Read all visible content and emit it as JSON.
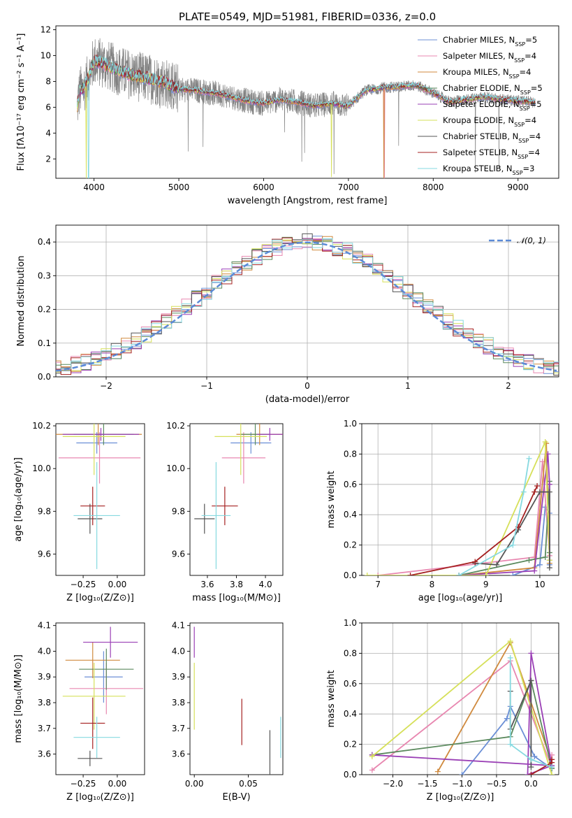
{
  "figure_title": "PLATE=0549, MJD=51981, FIBERID=0336, z=0.0",
  "colors": {
    "Chabrier MILES": "#6b8fd6",
    "Salpeter MILES": "#e887b0",
    "Kroupa MILES": "#d08a3e",
    "Chabrier ELODIE": "#5b8a5e",
    "Salpeter ELODIE": "#9a3fb5",
    "Kroupa ELODIE": "#d6e05a",
    "Chabrier STELIB": "#555555",
    "Salpeter STELIB": "#a52020",
    "Kroupa STELIB": "#86d9e0"
  },
  "chart_data": [
    {
      "type": "line",
      "id": "spectrum",
      "title": "PLATE=0549, MJD=51981, FIBERID=0336, z=0.0",
      "xlabel": "wavelength [Angstrom, rest frame]",
      "ylabel": "Flux [fλ10⁻¹⁷ erg cm⁻² s⁻¹ A⁻¹]",
      "xlim": [
        3550,
        9480
      ],
      "ylim": [
        0.5,
        12.3
      ],
      "xticks": [
        4000,
        5000,
        6000,
        7000,
        8000,
        9000
      ],
      "yticks": [
        2,
        4,
        6,
        8,
        10,
        12
      ],
      "legend_position": "top-right",
      "data_color": "#808080",
      "continuum_nodes": {
        "x": [
          3800,
          3830,
          3880,
          3920,
          3960,
          4000,
          4100,
          4300,
          4500,
          4800,
          5000,
          5200,
          5500,
          5800,
          6000,
          6200,
          6400,
          6600,
          6800,
          7000,
          7200,
          7400,
          7600,
          7800,
          8000,
          8200,
          8400,
          8600,
          8800,
          9000,
          9200
        ],
        "y": [
          6.0,
          7.2,
          7.5,
          8.0,
          8.8,
          9.6,
          9.4,
          8.8,
          8.4,
          8.0,
          7.4,
          7.3,
          7.0,
          6.5,
          6.3,
          6.6,
          6.4,
          6.1,
          6.3,
          6.1,
          7.3,
          7.5,
          7.6,
          7.7,
          7.1,
          6.4,
          6.6,
          6.8,
          6.6,
          6.5,
          6.4
        ]
      },
      "dropouts": [
        {
          "series": "Kroupa ELODIE",
          "x": 6800,
          "depth": 0.6
        },
        {
          "series": "Kroupa MILES",
          "x": 7420,
          "depth": 0.2
        },
        {
          "series": "Salpeter MILES",
          "x": 7425,
          "depth": 0.2
        },
        {
          "series": "Kroupa ELODIE",
          "x": 3910,
          "depth": 0.5
        },
        {
          "series": "Kroupa STELIB",
          "x": 3935,
          "depth": 0.3
        }
      ],
      "series": [
        {
          "name": "Chabrier MILES",
          "legend": "Chabrier MILES, N",
          "sub": "SSP",
          "suffix": "=5"
        },
        {
          "name": "Salpeter MILES",
          "legend": "Salpeter MILES, N",
          "sub": "SSP",
          "suffix": "=4"
        },
        {
          "name": "Kroupa MILES",
          "legend": "Kroupa MILES, N",
          "sub": "SSP",
          "suffix": "=4"
        },
        {
          "name": "Chabrier ELODIE",
          "legend": "Chabrier ELODIE, N",
          "sub": "SSP",
          "suffix": "=5"
        },
        {
          "name": "Salpeter ELODIE",
          "legend": "Salpeter ELODIE, N",
          "sub": "SSP",
          "suffix": "=5"
        },
        {
          "name": "Kroupa ELODIE",
          "legend": "Kroupa ELODIE, N",
          "sub": "SSP",
          "suffix": "=4"
        },
        {
          "name": "Chabrier STELIB",
          "legend": "Chabrier STELIB, N",
          "sub": "SSP",
          "suffix": "=4"
        },
        {
          "name": "Salpeter STELIB",
          "legend": "Salpeter STELIB, N",
          "sub": "SSP",
          "suffix": "=4"
        },
        {
          "name": "Kroupa STELIB",
          "legend": "Kroupa STELIB, N",
          "sub": "SSP",
          "suffix": "=3"
        }
      ]
    },
    {
      "type": "histogram",
      "id": "residuals",
      "xlabel": "(data-model)/error",
      "ylabel": "Normed distribution",
      "xlim": [
        -2.5,
        2.5
      ],
      "ylim": [
        0,
        0.45
      ],
      "xticks": [
        -2,
        -1,
        0,
        1,
        2
      ],
      "yticks": [
        0.0,
        0.1,
        0.2,
        0.3,
        0.4
      ],
      "grid": true,
      "bin_width": 0.1,
      "reference": {
        "label": "𝒩(0, 1)",
        "mean": 0,
        "sigma": 1,
        "color": "#5b8ad6",
        "style": "dashed"
      },
      "legend_position": "top-right"
    },
    {
      "type": "errorbar",
      "id": "age_vs_Z",
      "xlabel": "Z [log₁₀(Z/Z⊙)]",
      "ylabel": "age  [log₁₀(age/yr)]",
      "xlim": [
        -0.45,
        0.2
      ],
      "ylim": [
        9.5,
        10.21
      ],
      "xticks": [
        -0.25,
        0.0
      ],
      "yticks": [
        9.6,
        9.8,
        10.0,
        10.2
      ],
      "points": [
        {
          "series": "Chabrier MILES",
          "x": -0.15,
          "xerr": 0.15,
          "y": 10.12,
          "yerr": 0.05
        },
        {
          "series": "Salpeter MILES",
          "x": -0.13,
          "xerr": 0.3,
          "y": 10.05,
          "yerr": 0.12
        },
        {
          "series": "Kroupa MILES",
          "x": -0.14,
          "xerr": 0.32,
          "y": 10.16,
          "yerr": 0.05
        },
        {
          "series": "Chabrier ELODIE",
          "x": -0.1,
          "xerr": 0.22,
          "y": 10.16,
          "yerr": 0.05
        },
        {
          "series": "Salpeter ELODIE",
          "x": -0.12,
          "xerr": 0.28,
          "y": 10.16,
          "yerr": 0.03
        },
        {
          "series": "Kroupa ELODIE",
          "x": -0.17,
          "xerr": 0.23,
          "y": 10.15,
          "yerr": 0.18
        },
        {
          "series": "Chabrier STELIB",
          "x": -0.2,
          "xerr": 0.09,
          "y": 9.765,
          "yerr": 0.07
        },
        {
          "series": "Salpeter STELIB",
          "x": -0.18,
          "xerr": 0.09,
          "y": 9.825,
          "yerr": 0.09
        },
        {
          "series": "Kroupa STELIB",
          "x": -0.15,
          "xerr": 0.17,
          "y": 9.78,
          "yerr": 0.25
        }
      ]
    },
    {
      "type": "errorbar",
      "id": "age_vs_mass",
      "xlabel": "mass [log₁₀(M/M⊙)]",
      "ylabel": "",
      "xlim": [
        3.48,
        4.12
      ],
      "ylim": [
        9.5,
        10.21
      ],
      "xticks": [
        3.6,
        3.8,
        4.0
      ],
      "yticks": [
        9.6,
        9.8,
        10.0,
        10.2
      ],
      "points": [
        {
          "series": "Chabrier MILES",
          "x": 3.9,
          "xerr": 0.14,
          "y": 10.12,
          "yerr": 0.05
        },
        {
          "series": "Salpeter MILES",
          "x": 3.85,
          "xerr": 0.15,
          "y": 10.05,
          "yerr": 0.12
        },
        {
          "series": "Kroupa MILES",
          "x": 3.96,
          "xerr": 0.16,
          "y": 10.16,
          "yerr": 0.05
        },
        {
          "series": "Chabrier ELODIE",
          "x": 3.93,
          "xerr": 0.1,
          "y": 10.16,
          "yerr": 0.05
        },
        {
          "series": "Salpeter ELODIE",
          "x": 4.03,
          "xerr": 0.09,
          "y": 10.16,
          "yerr": 0.03
        },
        {
          "series": "Kroupa ELODIE",
          "x": 3.83,
          "xerr": 0.18,
          "y": 10.15,
          "yerr": 0.18
        },
        {
          "series": "Chabrier STELIB",
          "x": 3.58,
          "xerr": 0.07,
          "y": 9.765,
          "yerr": 0.07
        },
        {
          "series": "Salpeter STELIB",
          "x": 3.72,
          "xerr": 0.09,
          "y": 9.825,
          "yerr": 0.09
        },
        {
          "series": "Kroupa STELIB",
          "x": 3.66,
          "xerr": 0.1,
          "y": 9.78,
          "yerr": 0.25
        }
      ]
    },
    {
      "type": "line",
      "id": "weight_vs_age",
      "xlabel": "age  [log₁₀(age/yr)]",
      "ylabel": "mass weight",
      "xlim": [
        6.7,
        10.35
      ],
      "ylim": [
        0,
        1
      ],
      "xticks": [
        7,
        8,
        9,
        10
      ],
      "yticks": [
        0.0,
        0.2,
        0.4,
        0.6,
        0.8,
        1.0
      ],
      "grid": true,
      "series": [
        {
          "name": "Chabrier MILES",
          "x": [
            9.5,
            10.0,
            10.1,
            10.18,
            10.18
          ],
          "y": [
            0.0,
            0.07,
            0.45,
            0.41,
            0.07
          ]
        },
        {
          "name": "Salpeter MILES",
          "x": [
            7.0,
            9.9,
            10.05,
            10.18
          ],
          "y": [
            0.0,
            0.12,
            0.75,
            0.13
          ]
        },
        {
          "name": "Kroupa MILES",
          "x": [
            8.5,
            9.9,
            10.12,
            10.18
          ],
          "y": [
            0.0,
            0.05,
            0.87,
            0.08
          ]
        },
        {
          "name": "Chabrier ELODIE",
          "x": [
            8.5,
            9.8,
            10.1,
            10.18,
            10.18
          ],
          "y": [
            0.0,
            0.1,
            0.12,
            0.62,
            0.15
          ]
        },
        {
          "name": "Salpeter ELODIE",
          "x": [
            8.5,
            9.9,
            10.15,
            10.18,
            10.18
          ],
          "y": [
            0.0,
            0.03,
            0.8,
            0.6,
            0.1
          ]
        },
        {
          "name": "Kroupa ELODIE",
          "x": [
            6.8,
            9.0,
            10.1,
            10.18
          ],
          "y": [
            0.0,
            0.0,
            0.88,
            0.1
          ]
        },
        {
          "name": "Chabrier STELIB",
          "x": [
            8.8,
            9.2,
            9.6,
            10.0,
            10.18,
            10.18
          ],
          "y": [
            0.08,
            0.07,
            0.3,
            0.55,
            0.55,
            0.05
          ]
        },
        {
          "name": "Salpeter STELIB",
          "x": [
            7.6,
            8.8,
            9.6,
            9.9,
            9.95
          ],
          "y": [
            0.0,
            0.09,
            0.32,
            0.55,
            0.59
          ]
        },
        {
          "name": "Kroupa STELIB",
          "x": [
            8.5,
            9.5,
            9.7,
            9.8
          ],
          "y": [
            0.0,
            0.2,
            0.55,
            0.77
          ]
        }
      ]
    },
    {
      "type": "errorbar",
      "id": "mass_vs_Z",
      "xlabel": "Z [log₁₀(Z/Z⊙)]",
      "ylabel": "mass [log₁₀(M/M⊙)]",
      "xlim": [
        -0.45,
        0.2
      ],
      "ylim": [
        3.52,
        4.11
      ],
      "xticks": [
        -0.25,
        0.0
      ],
      "yticks": [
        3.6,
        3.7,
        3.8,
        3.9,
        4.0,
        4.1
      ],
      "points": [
        {
          "series": "Chabrier MILES",
          "x": -0.1,
          "xerr": 0.14,
          "y": 3.9,
          "yerr": 0.1
        },
        {
          "series": "Salpeter MILES",
          "x": -0.08,
          "xerr": 0.27,
          "y": 3.855,
          "yerr": 0.1
        },
        {
          "series": "Kroupa MILES",
          "x": -0.18,
          "xerr": 0.2,
          "y": 3.965,
          "yerr": 0.07
        },
        {
          "series": "Chabrier ELODIE",
          "x": -0.08,
          "xerr": 0.2,
          "y": 3.93,
          "yerr": 0.08
        },
        {
          "series": "Salpeter ELODIE",
          "x": -0.05,
          "xerr": 0.2,
          "y": 4.035,
          "yerr": 0.06
        },
        {
          "series": "Kroupa ELODIE",
          "x": -0.17,
          "xerr": 0.23,
          "y": 3.825,
          "yerr": 0.13
        },
        {
          "series": "Chabrier STELIB",
          "x": -0.2,
          "xerr": 0.09,
          "y": 3.583,
          "yerr": 0.03
        },
        {
          "series": "Salpeter STELIB",
          "x": -0.18,
          "xerr": 0.09,
          "y": 3.72,
          "yerr": 0.1
        },
        {
          "series": "Kroupa STELIB",
          "x": -0.15,
          "xerr": 0.17,
          "y": 3.665,
          "yerr": 0.08
        }
      ]
    },
    {
      "type": "errorbar",
      "id": "mass_vs_ebv",
      "xlabel": "E(B-V)",
      "ylabel": "",
      "xlim": [
        -0.004,
        0.082
      ],
      "ylim": [
        3.52,
        4.11
      ],
      "xticks": [
        0.0,
        0.05
      ],
      "yticks": [
        3.6,
        3.7,
        3.8,
        3.9,
        4.0,
        4.1
      ],
      "points": [
        {
          "series": "Salpeter ELODIE",
          "x": 0.0,
          "y": 4.035,
          "yerr": 0.06
        },
        {
          "series": "Kroupa ELODIE",
          "x": 0.0,
          "y": 3.825,
          "yerr": 0.13
        },
        {
          "series": "Salpeter STELIB",
          "x": 0.044,
          "y": 3.725,
          "yerr": 0.09
        },
        {
          "series": "Chabrier STELIB",
          "x": 0.07,
          "y": 3.583,
          "yerr": 0.11
        },
        {
          "series": "Kroupa STELIB",
          "x": 0.08,
          "y": 3.665,
          "yerr": 0.08
        }
      ]
    },
    {
      "type": "line",
      "id": "weight_vs_Z",
      "xlabel": "Z [log₁₀(Z/Z⊙)]",
      "ylabel": "mass weight",
      "xlim": [
        -2.45,
        0.4
      ],
      "ylim": [
        0,
        1
      ],
      "xticks": [
        -2.0,
        -1.5,
        -1.0,
        -0.5,
        0.0
      ],
      "yticks": [
        0.0,
        0.2,
        0.4,
        0.6,
        0.8,
        1.0
      ],
      "grid": true,
      "series": [
        {
          "name": "Chabrier MILES",
          "x": [
            -1.0,
            -0.35,
            -0.3,
            0.05,
            0.3
          ],
          "y": [
            0.0,
            0.37,
            0.45,
            0.12,
            0.04
          ]
        },
        {
          "name": "Salpeter MILES",
          "x": [
            -2.3,
            -0.3,
            0.3,
            0.3
          ],
          "y": [
            0.03,
            0.75,
            0.05,
            0.13
          ]
        },
        {
          "name": "Kroupa MILES",
          "x": [
            -1.35,
            -0.3,
            0.3
          ],
          "y": [
            0.02,
            0.87,
            0.08
          ]
        },
        {
          "name": "Chabrier ELODIE",
          "x": [
            -2.3,
            -0.3,
            0.0,
            0.3
          ],
          "y": [
            0.13,
            0.25,
            0.62,
            0.04
          ]
        },
        {
          "name": "Salpeter ELODIE",
          "x": [
            -2.3,
            0.3,
            0.0,
            -0.05,
            0.3
          ],
          "y": [
            0.13,
            0.06,
            0.8,
            0.0,
            0.06
          ]
        },
        {
          "name": "Kroupa ELODIE",
          "x": [
            -2.3,
            -0.3,
            0.3
          ],
          "y": [
            0.12,
            0.88,
            0.0
          ]
        },
        {
          "name": "Chabrier STELIB",
          "x": [
            -0.3,
            -0.3,
            0.0,
            0.0
          ],
          "y": [
            0.55,
            0.3,
            0.62,
            0.05
          ]
        },
        {
          "name": "Salpeter STELIB",
          "x": [
            0.0,
            0.3,
            0.3
          ],
          "y": [
            0.0,
            0.08,
            0.1
          ]
        },
        {
          "name": "Kroupa STELIB",
          "x": [
            -0.3,
            -0.3,
            0.0,
            0.3
          ],
          "y": [
            0.77,
            0.2,
            0.1,
            0.05
          ]
        }
      ]
    }
  ]
}
